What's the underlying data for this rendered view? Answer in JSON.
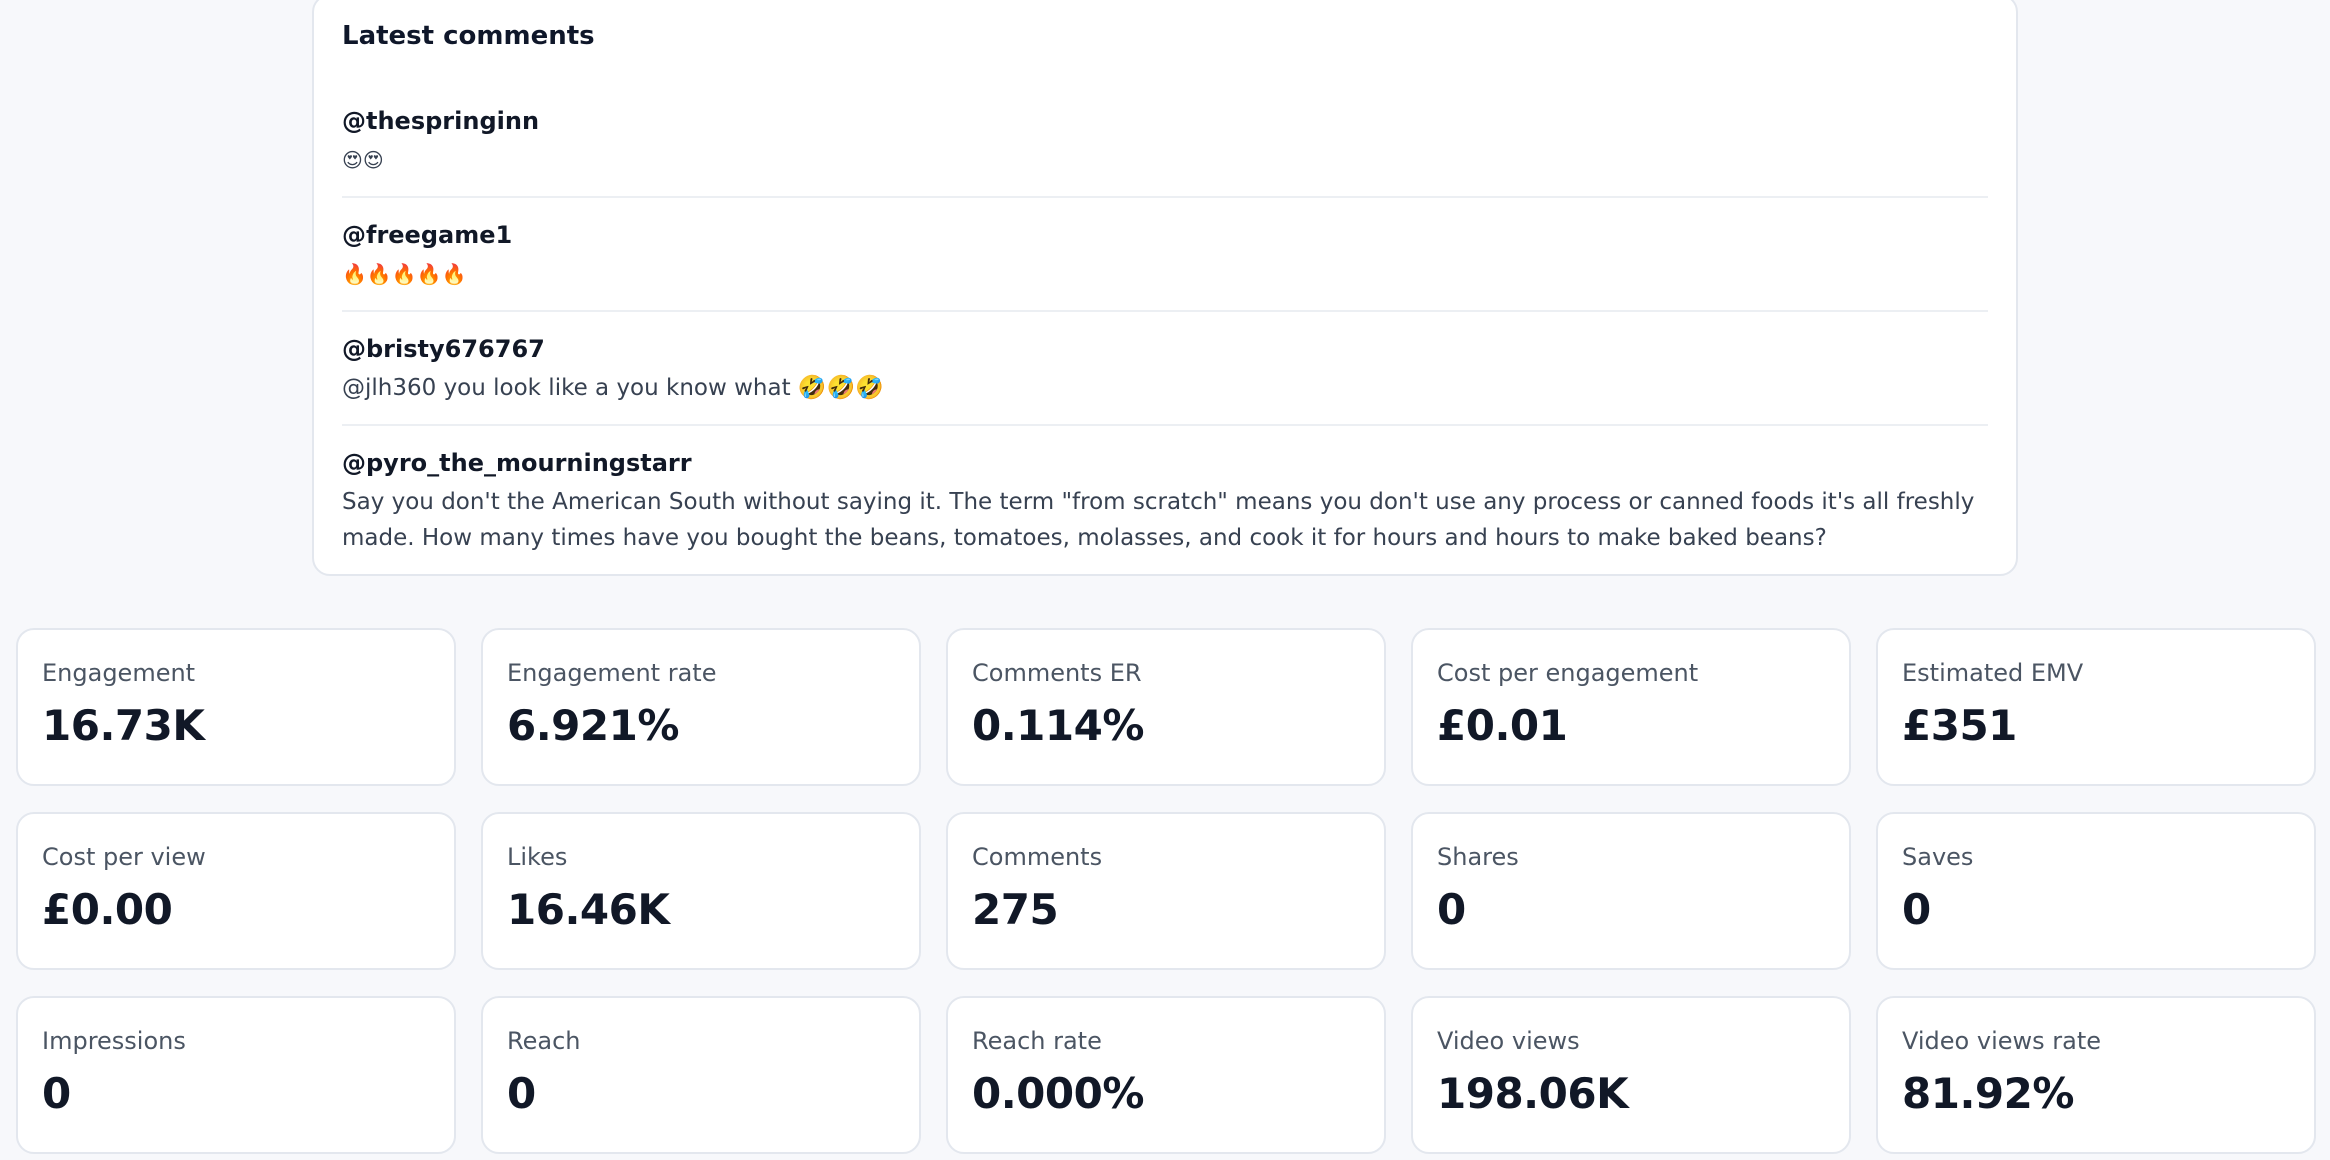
{
  "latest_comments": {
    "title": "Latest comments",
    "items": [
      {
        "author": "@thespringinn",
        "text": "😍😍"
      },
      {
        "author": "@freegame1",
        "text": "🔥🔥🔥🔥🔥"
      },
      {
        "author": "@bristy676767",
        "text": "@jlh360 you look like a you know what 🤣🤣🤣"
      },
      {
        "author": "@pyro_the_mourningstarr",
        "text": "Say you don't the American South without saying it. The term \"from scratch\" means you don't use any process or canned foods it's all freshly made. How many times have you bought the beans, tomatoes, molasses, and cook it for hours and hours to make baked beans?"
      }
    ]
  },
  "stats": [
    {
      "label": "Engagement",
      "value": "16.73K"
    },
    {
      "label": "Engagement rate",
      "value": "6.921%"
    },
    {
      "label": "Comments ER",
      "value": "0.114%"
    },
    {
      "label": "Cost per engagement",
      "value": "£0.01"
    },
    {
      "label": "Estimated EMV",
      "value": "£351"
    },
    {
      "label": "Cost per view",
      "value": "£0.00"
    },
    {
      "label": "Likes",
      "value": "16.46K"
    },
    {
      "label": "Comments",
      "value": "275"
    },
    {
      "label": "Shares",
      "value": "0"
    },
    {
      "label": "Saves",
      "value": "0"
    },
    {
      "label": "Impressions",
      "value": "0"
    },
    {
      "label": "Reach",
      "value": "0"
    },
    {
      "label": "Reach rate",
      "value": "0.000%"
    },
    {
      "label": "Video views",
      "value": "198.06K"
    },
    {
      "label": "Video views rate",
      "value": "81.92%"
    }
  ]
}
